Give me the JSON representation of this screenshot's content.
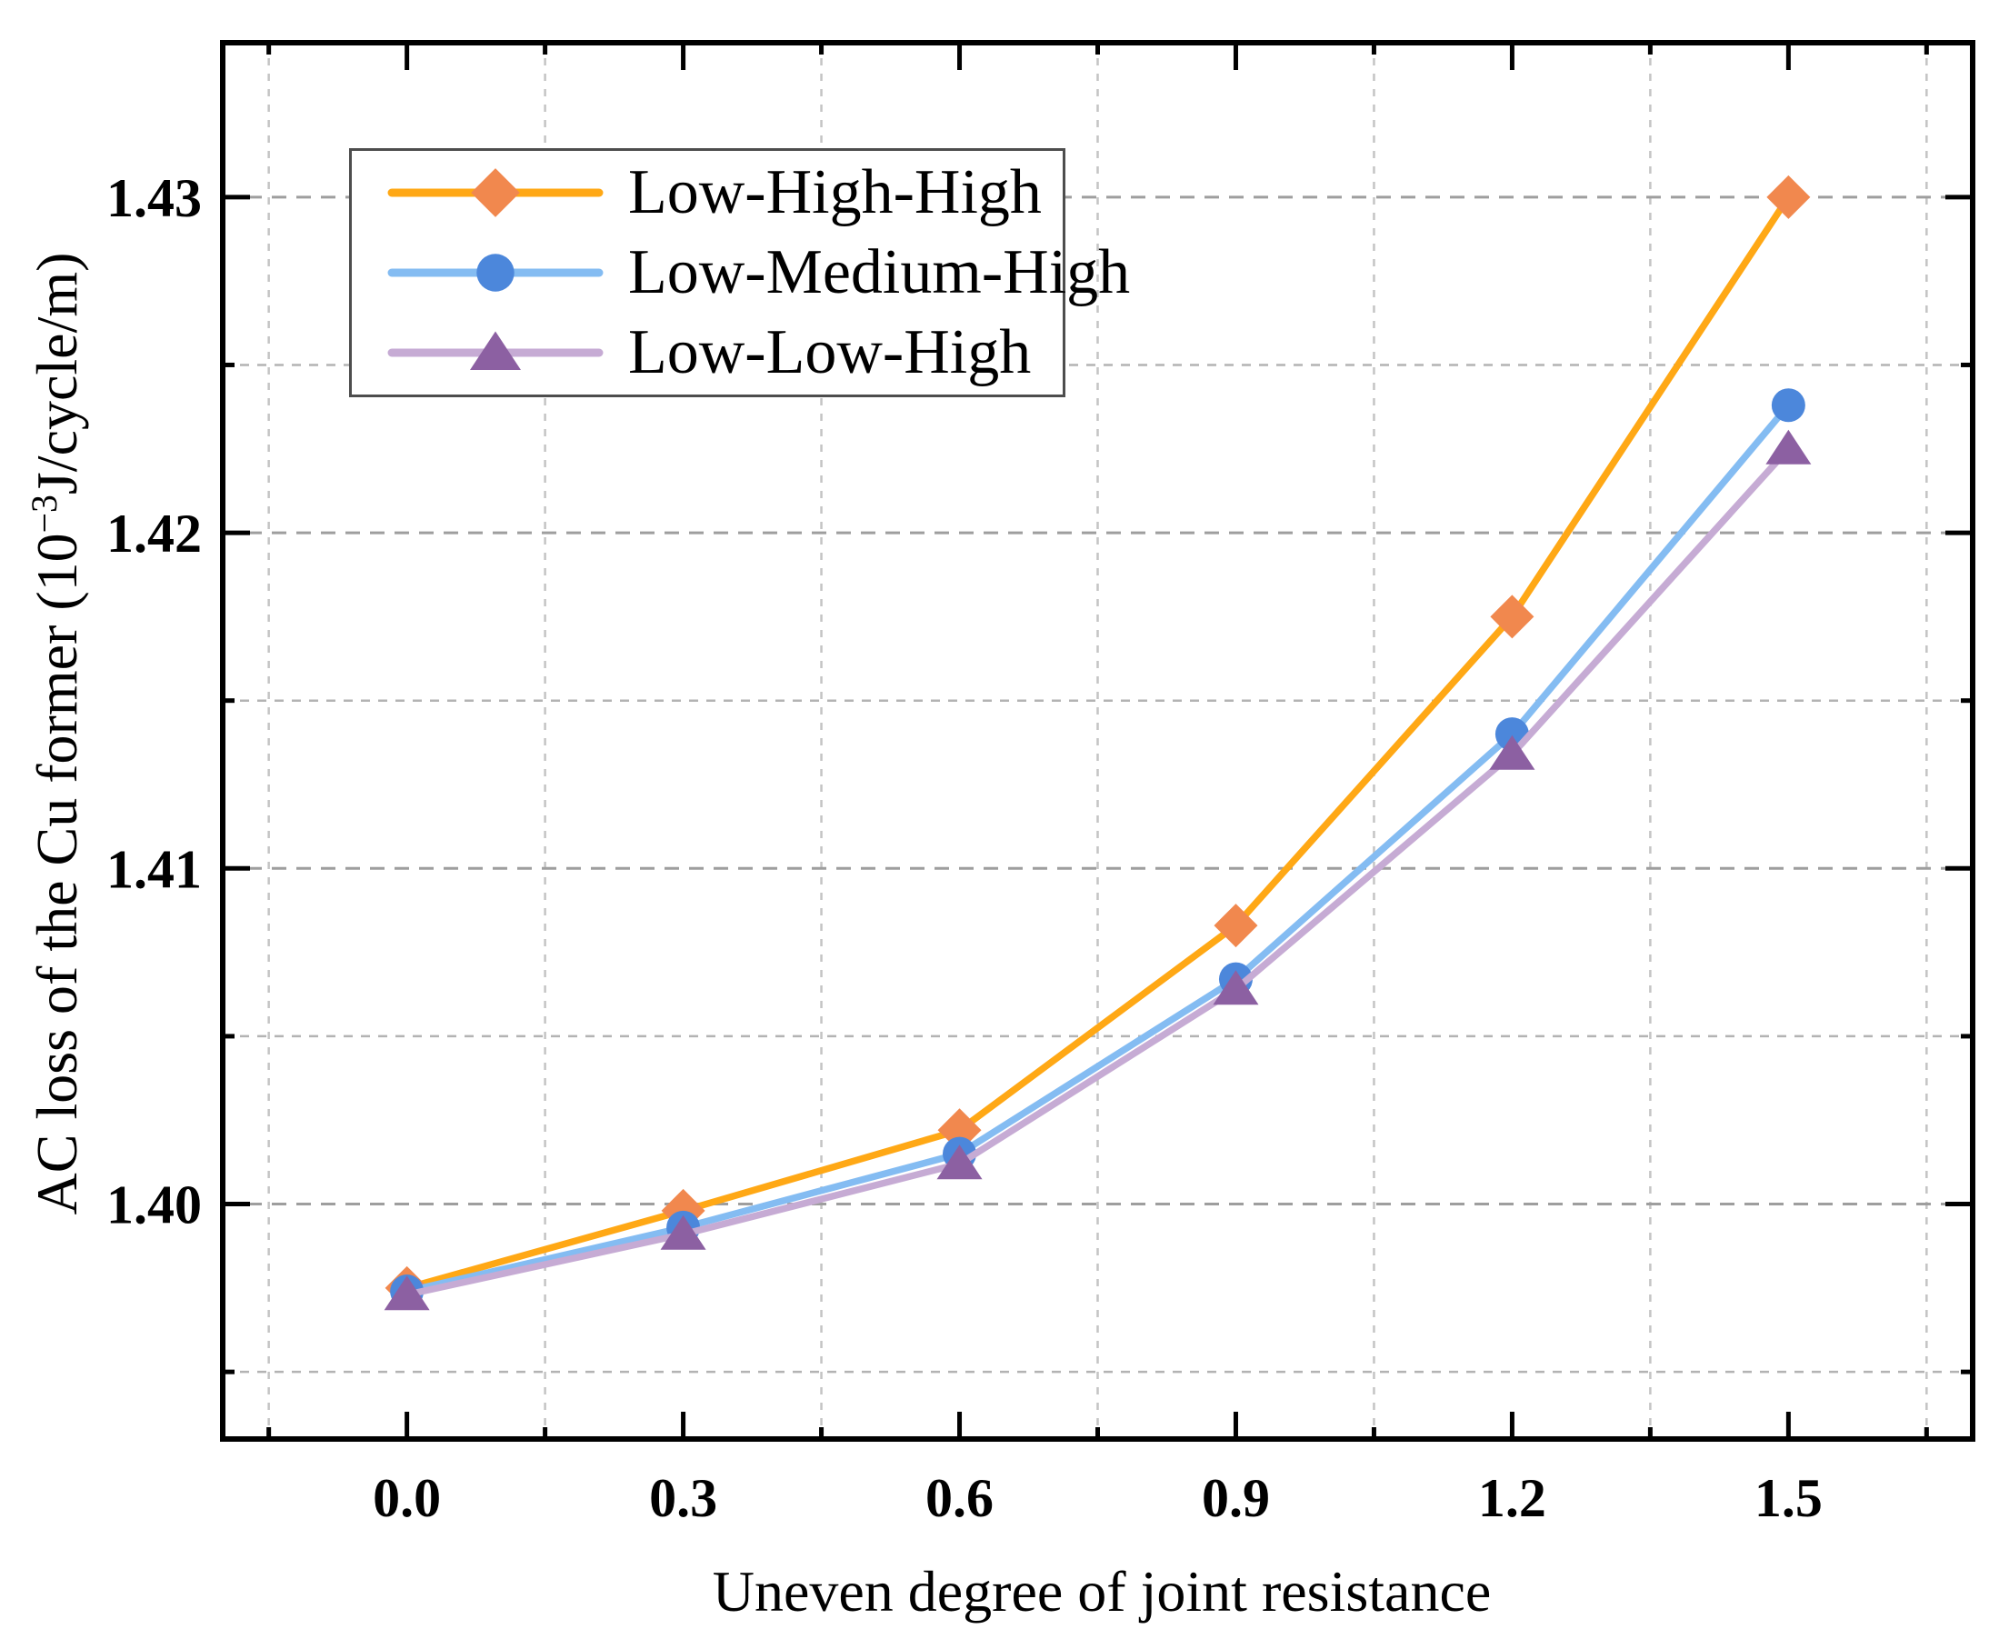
{
  "chart_data": {
    "type": "line",
    "title": "",
    "xlabel": "Uneven degree of joint resistance",
    "ylabel": {
      "prefix": "AC loss of the Cu former (10",
      "superscript": "−3",
      "suffix": "J/cycle/m)"
    },
    "x": [
      0.0,
      0.3,
      0.6,
      0.9,
      1.2,
      1.5
    ],
    "series": [
      {
        "name": "Low-High-High",
        "marker": "diamond",
        "line_color": "#FFA815",
        "marker_color": "#F1884E",
        "values": [
          1.3975,
          1.3998,
          1.4022,
          1.4083,
          1.4175,
          1.43
        ]
      },
      {
        "name": "Low-Medium-High",
        "marker": "circle",
        "line_color": "#84BCF2",
        "marker_color": "#4C87DB",
        "values": [
          1.3974,
          1.3993,
          1.4015,
          1.4067,
          1.414,
          1.4238
        ]
      },
      {
        "name": "Low-Low-High",
        "marker": "triangle",
        "line_color": "#C6ABD4",
        "marker_color": "#8C60A2",
        "values": [
          1.3973,
          1.3991,
          1.4012,
          1.4064,
          1.4134,
          1.4225
        ]
      }
    ],
    "xlim": [
      -0.2,
      1.7
    ],
    "ylim": [
      1.393,
      1.4346
    ],
    "xticks": {
      "values": [
        0.0,
        0.3,
        0.6,
        0.9,
        1.2,
        1.5
      ],
      "labels": [
        "0.0",
        "0.3",
        "0.6",
        "0.9",
        "1.2",
        "1.5"
      ]
    },
    "yticks": {
      "values": [
        1.4,
        1.41,
        1.42,
        1.43
      ],
      "labels": [
        "1.40",
        "1.41",
        "1.42",
        "1.43"
      ]
    },
    "xminor": [
      -0.15,
      0.15,
      0.45,
      0.75,
      1.05,
      1.35,
      1.65
    ],
    "yminor": [
      1.395,
      1.405,
      1.415,
      1.425
    ],
    "grid": {
      "horizontal": "major+minor dashed",
      "vertical": "minor dashed only"
    },
    "legend": {
      "position": "upper-left",
      "entries": [
        "Low-High-High",
        "Low-Medium-High",
        "Low-Low-High"
      ]
    }
  }
}
